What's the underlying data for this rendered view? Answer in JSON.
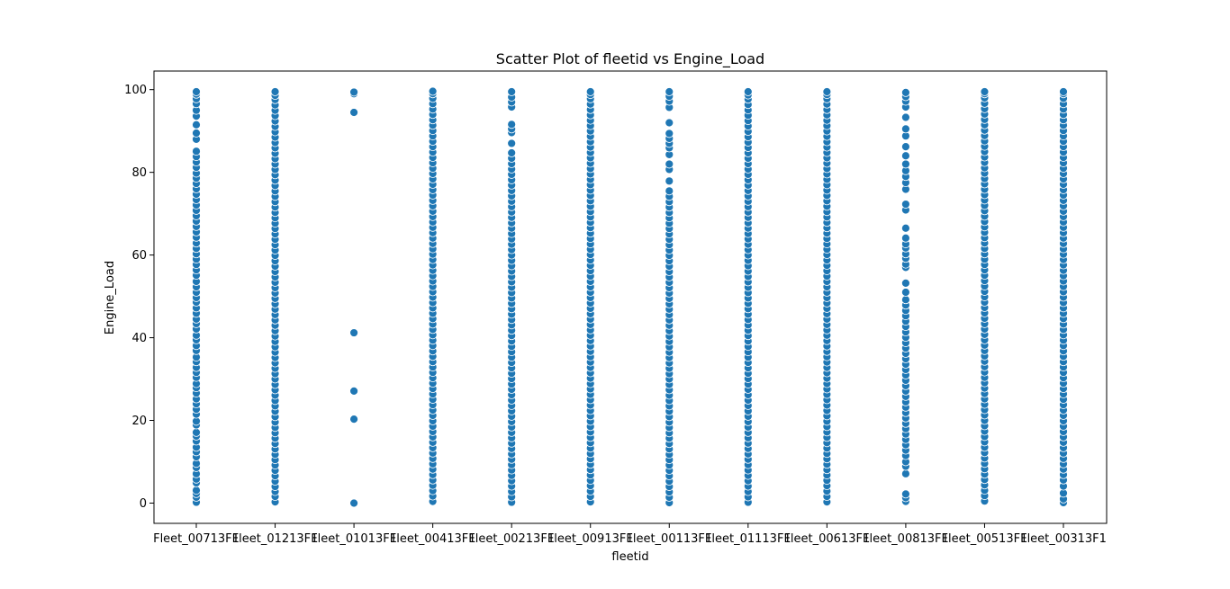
{
  "chart_data": {
    "type": "scatter",
    "title": "Scatter Plot of fleetid vs Engine_Load",
    "xlabel": "fleetid",
    "ylabel": "Engine_Load",
    "categories": [
      "Fleet_00713F1",
      "Fleet_01213F1",
      "Fleet_01013F1",
      "Fleet_00413F1",
      "Fleet_00213F1",
      "Fleet_00913F1",
      "Fleet_00113F1",
      "Fleet_01113F1",
      "Fleet_00613F1",
      "Fleet_00813F1",
      "Fleet_00513F1",
      "Fleet_00313F1"
    ],
    "ylim": [
      -4.9,
      104.5
    ],
    "yticks": [
      0,
      20,
      40,
      60,
      80,
      100
    ],
    "grid": false,
    "marker_color": "#1f77b4",
    "points": [
      {
        "category": "Fleet_00713F1",
        "values": [
          0.2,
          1.4,
          2.3,
          3.1,
          4.9,
          5.8,
          7.1,
          8.6,
          9.6,
          11.2,
          12.4,
          13.5,
          15.0,
          16.2,
          17.1,
          18.9,
          19.8,
          21.5,
          22.7,
          24.0,
          25.2,
          26.6,
          27.9,
          28.9,
          30.4,
          31.6,
          32.8,
          34.2,
          35.3,
          36.9,
          38.1,
          39.5,
          40.6,
          42.1,
          43.4,
          44.5,
          45.9,
          47.2,
          48.6,
          49.7,
          51.0,
          52.3,
          53.6,
          55.1,
          56.4,
          57.7,
          59.0,
          60.3,
          61.6,
          62.9,
          64.3,
          65.6,
          66.9,
          68.2,
          69.5,
          70.8,
          72.1,
          73.4,
          74.7,
          76.0,
          77.3,
          78.6,
          79.8,
          81.2,
          82.5,
          83.8,
          85.1,
          88.0,
          89.5,
          91.5,
          93.6,
          95.0,
          96.6,
          97.8,
          98.9,
          99.5
        ]
      },
      {
        "category": "Fleet_01213F1",
        "values": [
          0.3,
          1.6,
          2.8,
          4.0,
          5.3,
          6.6,
          7.9,
          9.2,
          10.5,
          11.8,
          13.1,
          14.4,
          15.7,
          17.0,
          18.3,
          19.6,
          20.9,
          22.2,
          23.5,
          24.8,
          26.1,
          27.4,
          28.7,
          30.0,
          31.3,
          32.6,
          33.9,
          35.2,
          36.5,
          37.8,
          39.1,
          40.4,
          41.7,
          43.0,
          44.3,
          45.6,
          46.9,
          48.2,
          49.5,
          50.8,
          52.1,
          53.4,
          54.7,
          56.0,
          57.3,
          58.6,
          59.9,
          61.2,
          62.5,
          63.8,
          65.1,
          66.4,
          67.7,
          69.0,
          70.3,
          71.6,
          72.9,
          74.2,
          75.5,
          76.8,
          78.1,
          79.4,
          80.7,
          82.0,
          83.3,
          84.6,
          85.9,
          87.2,
          88.5,
          89.8,
          91.1,
          92.4,
          93.7,
          95.0,
          96.3,
          97.6,
          98.6,
          99.5
        ]
      },
      {
        "category": "Fleet_01013F1",
        "values": [
          0.0,
          20.3,
          27.1,
          41.2,
          94.5,
          99.0,
          99.4
        ]
      },
      {
        "category": "Fleet_00413F1",
        "values": [
          0.4,
          1.7,
          3.0,
          4.3,
          5.6,
          6.9,
          8.2,
          9.5,
          10.8,
          12.1,
          13.4,
          14.7,
          16.0,
          17.3,
          18.6,
          19.9,
          21.2,
          22.5,
          23.8,
          25.1,
          26.4,
          27.7,
          29.0,
          30.3,
          31.6,
          32.9,
          34.2,
          35.5,
          36.8,
          38.1,
          39.4,
          40.7,
          42.0,
          43.3,
          44.6,
          45.9,
          47.2,
          48.5,
          49.8,
          51.1,
          52.4,
          53.7,
          55.0,
          56.3,
          57.6,
          58.9,
          60.2,
          61.5,
          62.8,
          64.1,
          65.4,
          66.7,
          68.0,
          69.3,
          70.6,
          71.9,
          73.2,
          74.5,
          75.8,
          77.1,
          78.4,
          79.7,
          81.0,
          82.3,
          83.6,
          84.9,
          86.2,
          87.5,
          88.8,
          90.1,
          91.4,
          92.7,
          94.0,
          95.3,
          96.6,
          97.9,
          99.0,
          99.6
        ]
      },
      {
        "category": "Fleet_00213F1",
        "values": [
          0.2,
          1.5,
          2.8,
          4.1,
          5.4,
          6.7,
          8.0,
          9.3,
          10.6,
          11.9,
          13.2,
          14.5,
          15.8,
          17.1,
          18.4,
          19.7,
          21.0,
          22.3,
          23.6,
          24.9,
          26.2,
          27.5,
          28.8,
          30.1,
          31.4,
          32.7,
          34.0,
          35.3,
          36.6,
          37.9,
          39.2,
          40.5,
          41.8,
          43.1,
          44.4,
          45.7,
          47.0,
          48.3,
          49.6,
          50.9,
          52.2,
          53.5,
          54.8,
          56.1,
          57.4,
          58.7,
          60.0,
          61.3,
          62.6,
          63.9,
          65.2,
          66.5,
          67.8,
          69.1,
          70.4,
          71.7,
          73.0,
          74.3,
          75.6,
          76.9,
          78.2,
          79.5,
          80.8,
          82.1,
          83.4,
          84.7,
          87.0,
          89.6,
          90.5,
          91.6,
          95.8,
          97.0,
          98.2,
          99.5
        ]
      },
      {
        "category": "Fleet_00913F1",
        "values": [
          0.3,
          1.6,
          2.9,
          4.2,
          5.5,
          6.8,
          8.1,
          9.4,
          10.7,
          12.0,
          13.3,
          14.6,
          15.9,
          17.2,
          18.5,
          19.8,
          21.1,
          22.4,
          23.7,
          25.0,
          26.3,
          27.6,
          28.9,
          30.2,
          31.5,
          32.8,
          34.1,
          35.4,
          36.7,
          38.0,
          39.3,
          40.6,
          41.9,
          43.2,
          44.5,
          45.8,
          47.1,
          48.4,
          49.7,
          51.0,
          52.3,
          53.6,
          54.9,
          56.2,
          57.5,
          58.8,
          60.1,
          61.4,
          62.7,
          64.0,
          65.3,
          66.6,
          67.9,
          69.2,
          70.5,
          71.8,
          73.1,
          74.4,
          75.7,
          77.0,
          78.3,
          79.6,
          80.9,
          82.2,
          83.5,
          84.8,
          86.1,
          87.4,
          88.7,
          90.0,
          91.3,
          92.6,
          93.9,
          95.2,
          96.5,
          97.8,
          98.8,
          99.5
        ]
      },
      {
        "category": "Fleet_00113F1",
        "values": [
          0.1,
          1.4,
          2.7,
          4.0,
          5.3,
          6.6,
          7.9,
          9.2,
          10.5,
          11.8,
          13.1,
          14.4,
          15.7,
          17.0,
          18.3,
          19.6,
          20.9,
          22.2,
          23.5,
          24.8,
          26.1,
          27.4,
          28.7,
          30.0,
          31.3,
          32.6,
          33.9,
          35.2,
          36.5,
          37.8,
          39.1,
          40.4,
          41.7,
          43.0,
          44.3,
          45.6,
          46.9,
          48.2,
          49.5,
          50.8,
          52.1,
          53.4,
          54.7,
          56.0,
          57.3,
          58.6,
          59.9,
          61.2,
          62.5,
          63.8,
          65.1,
          66.4,
          67.7,
          69.0,
          70.3,
          71.6,
          72.9,
          74.2,
          75.5,
          77.9,
          80.7,
          82.0,
          84.3,
          85.9,
          87.0,
          88.2,
          89.4,
          92.0,
          95.7,
          97.2,
          98.4,
          99.5
        ]
      },
      {
        "category": "Fleet_01113F1",
        "values": [
          0.2,
          1.5,
          2.8,
          4.1,
          5.4,
          6.7,
          8.0,
          9.3,
          10.6,
          11.9,
          13.2,
          14.5,
          15.8,
          17.1,
          18.4,
          19.7,
          21.0,
          22.3,
          23.6,
          24.9,
          26.2,
          27.5,
          28.8,
          30.1,
          31.4,
          32.7,
          34.0,
          35.3,
          36.6,
          37.9,
          39.2,
          40.5,
          41.8,
          43.1,
          44.4,
          45.7,
          47.0,
          48.3,
          49.6,
          50.9,
          52.2,
          53.5,
          54.8,
          56.1,
          57.4,
          58.7,
          60.0,
          61.3,
          62.6,
          63.9,
          65.2,
          66.5,
          67.8,
          69.1,
          70.4,
          71.7,
          73.0,
          74.3,
          75.6,
          76.9,
          78.2,
          79.5,
          80.8,
          82.1,
          83.4,
          84.7,
          86.0,
          87.3,
          88.6,
          89.9,
          91.2,
          92.5,
          93.8,
          95.1,
          96.4,
          97.7,
          98.7,
          99.5
        ]
      },
      {
        "category": "Fleet_00613F1",
        "values": [
          0.3,
          1.6,
          2.9,
          4.2,
          5.5,
          6.8,
          8.1,
          9.4,
          10.7,
          12.0,
          13.3,
          14.6,
          15.9,
          17.2,
          18.5,
          19.8,
          21.1,
          22.4,
          23.7,
          25.0,
          26.3,
          27.6,
          28.9,
          30.2,
          31.5,
          32.8,
          34.1,
          35.4,
          36.7,
          38.0,
          39.3,
          40.6,
          41.9,
          43.2,
          44.5,
          45.8,
          47.1,
          48.4,
          49.7,
          51.0,
          52.3,
          53.6,
          54.9,
          56.2,
          57.5,
          58.8,
          60.1,
          61.4,
          62.7,
          64.0,
          65.3,
          66.6,
          67.9,
          69.2,
          70.5,
          71.8,
          73.1,
          74.4,
          75.7,
          77.0,
          78.3,
          79.6,
          80.9,
          82.2,
          83.5,
          84.8,
          86.1,
          87.4,
          88.7,
          90.0,
          91.3,
          92.6,
          93.9,
          95.2,
          96.5,
          97.8,
          98.8,
          99.5
        ]
      },
      {
        "category": "Fleet_00813F1",
        "values": [
          0.4,
          1.3,
          2.2,
          7.1,
          8.9,
          10.0,
          11.5,
          12.8,
          14.1,
          15.4,
          16.7,
          18.0,
          19.3,
          20.6,
          21.9,
          23.2,
          24.5,
          25.8,
          27.1,
          28.4,
          29.7,
          31.0,
          32.3,
          33.6,
          34.9,
          36.2,
          37.5,
          38.8,
          40.1,
          41.4,
          42.7,
          44.0,
          45.3,
          46.6,
          47.9,
          49.2,
          51.0,
          53.2,
          57.0,
          57.8,
          59.2,
          60.3,
          61.7,
          62.7,
          64.1,
          66.5,
          70.9,
          72.3,
          75.9,
          77.5,
          79.0,
          80.4,
          82.0,
          84.0,
          86.2,
          88.8,
          90.5,
          93.3,
          95.8,
          97.2,
          98.3,
          99.3
        ]
      },
      {
        "category": "Fleet_00513F1",
        "values": [
          0.5,
          1.8,
          3.1,
          4.4,
          5.7,
          7.0,
          8.3,
          9.6,
          10.9,
          12.2,
          13.5,
          14.8,
          16.1,
          17.4,
          18.7,
          20.0,
          21.3,
          22.6,
          23.9,
          25.2,
          26.5,
          27.8,
          29.1,
          30.4,
          31.7,
          33.0,
          34.3,
          35.6,
          36.9,
          38.2,
          39.5,
          40.8,
          42.1,
          43.4,
          44.7,
          46.0,
          47.3,
          48.6,
          49.9,
          51.2,
          52.5,
          53.8,
          55.1,
          56.4,
          57.7,
          59.0,
          60.3,
          61.6,
          62.9,
          64.2,
          65.5,
          66.8,
          68.1,
          69.4,
          70.7,
          72.0,
          73.3,
          74.6,
          75.9,
          77.2,
          78.5,
          79.8,
          81.1,
          82.4,
          83.7,
          85.0,
          86.3,
          87.6,
          88.9,
          90.2,
          91.5,
          92.8,
          94.1,
          95.4,
          96.7,
          98.0,
          99.0,
          99.5
        ]
      },
      {
        "category": "Fleet_00313F1",
        "values": [
          0.1,
          1.0,
          2.4,
          4.1,
          5.6,
          6.9,
          8.2,
          9.5,
          10.8,
          12.1,
          13.4,
          14.7,
          16.0,
          17.3,
          18.6,
          19.9,
          21.2,
          22.5,
          23.8,
          25.1,
          26.4,
          27.7,
          29.0,
          30.3,
          31.6,
          32.9,
          34.2,
          35.5,
          36.8,
          38.1,
          39.4,
          40.7,
          42.0,
          43.3,
          44.6,
          45.9,
          47.2,
          48.5,
          49.8,
          51.1,
          52.4,
          53.7,
          55.0,
          56.3,
          57.6,
          58.9,
          60.2,
          61.5,
          62.8,
          64.1,
          65.4,
          66.7,
          68.0,
          69.3,
          70.6,
          71.9,
          73.2,
          74.5,
          75.8,
          77.1,
          78.4,
          79.7,
          81.0,
          82.3,
          83.6,
          84.9,
          86.2,
          87.5,
          88.8,
          90.1,
          91.4,
          92.7,
          94.0,
          95.3,
          96.6,
          97.9,
          99.0,
          99.5
        ]
      }
    ]
  }
}
